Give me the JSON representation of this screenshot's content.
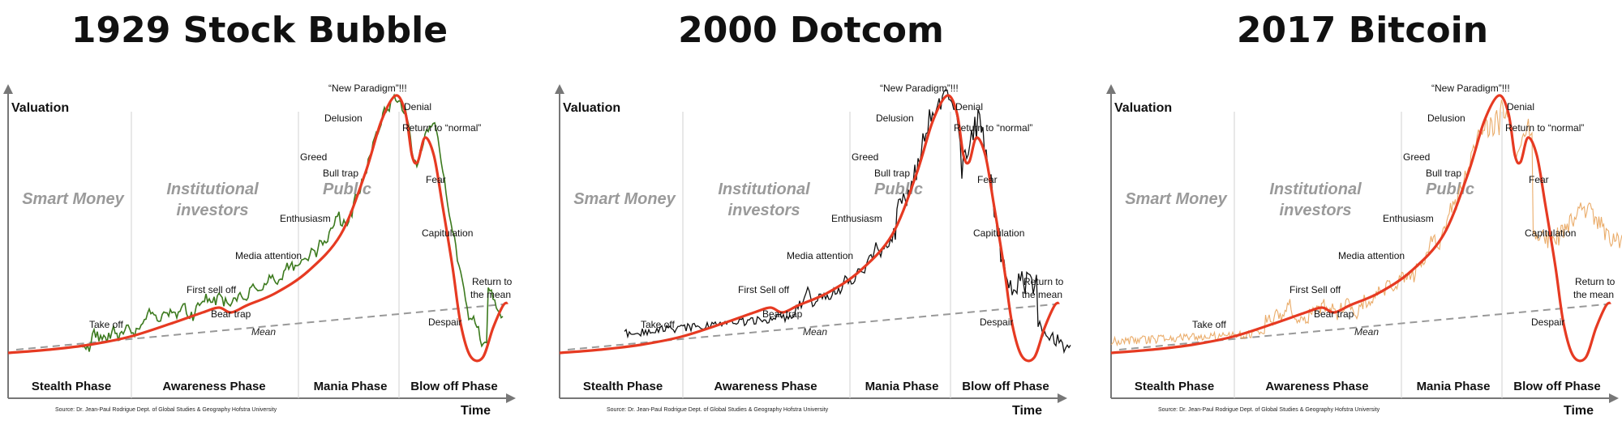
{
  "chart_data": [
    {
      "type": "line",
      "title": "1929 Stock Bubble",
      "ylabel": "Valuation",
      "xlabel": "Time",
      "overlay_color": "#3c7a1e",
      "overlay_pattern": "1929",
      "zones": [
        "Smart Money",
        "Institutional investors",
        "Public"
      ],
      "phases": [
        "Stealth Phase",
        "Awareness Phase",
        "Mania Phase",
        "Blow off Phase"
      ],
      "annotations": [
        "Take off",
        "First sell off",
        "Bear trap",
        "Media attention",
        "Enthusiasm",
        "Greed",
        "Delusion",
        "“New Paradigm”!!!",
        "Denial",
        "Bull trap",
        "Return to “normal”",
        "Fear",
        "Capitulation",
        "Return to the mean",
        "Despair",
        "Mean"
      ],
      "source": "Source: Dr. Jean-Paul Rodrigue Dept. of Global Studies & Geography Hofstra University"
    },
    {
      "type": "line",
      "title": "2000 Dotcom",
      "ylabel": "Valuation",
      "xlabel": "Time",
      "overlay_color": "#111111",
      "overlay_pattern": "2000",
      "zones": [
        "Smart Money",
        "Institutional investors",
        "Public"
      ],
      "phases": [
        "Stealth Phase",
        "Awareness Phase",
        "Mania Phase",
        "Blow off Phase"
      ],
      "annotations": [
        "Take off",
        "First Sell off",
        "Bear trap",
        "Media attention",
        "Enthusiasm",
        "Greed",
        "Delusion",
        "“New Paradigm”!!!",
        "Denial",
        "Bull trap",
        "Return to “normal”",
        "Fear",
        "Capitulation",
        "Return to the mean",
        "Despair",
        "Mean"
      ],
      "source": "Source: Dr. Jean-Paul Rodrigue Dept. of Global Studies & Geography Hofstra University"
    },
    {
      "type": "line",
      "title": "2017 Bitcoin",
      "ylabel": "Valuation",
      "xlabel": "Time",
      "overlay_color": "#e8a35a",
      "overlay_pattern": "2017",
      "zones": [
        "Smart Money",
        "Institutional investors",
        "Public"
      ],
      "phases": [
        "Stealth Phase",
        "Awareness Phase",
        "Mania Phase",
        "Blow off Phase"
      ],
      "annotations": [
        "Take off",
        "First Sell off",
        "Bear trap",
        "Media attention",
        "Enthusiasm",
        "Greed",
        "Delusion",
        "“New Paradigm”!!!",
        "Denial",
        "Bull trap",
        "Return to “normal”",
        "Fear",
        "Capitulation",
        "Return to the mean",
        "Despair",
        "Mean"
      ],
      "source": "Source: Dr. Jean-Paul Rodrigue Dept. of Global Studies & Geography Hofstra University"
    }
  ]
}
